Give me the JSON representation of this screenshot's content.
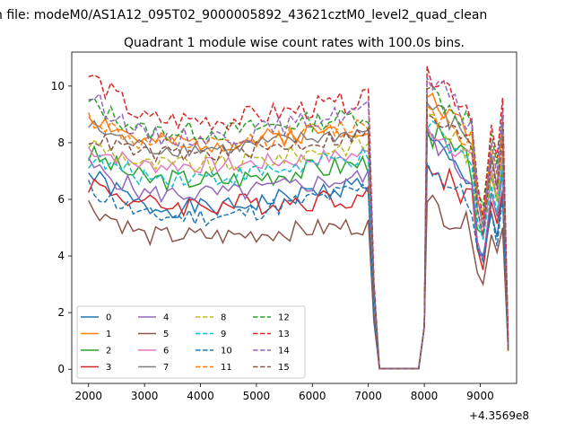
{
  "figure": {
    "suptitle": "n file: modeM0/AS1A12_095T02_9000005892_43621cztM0_level2_quad_clean",
    "title": "Quadrant 1 module wise count rates with 100.0s bins.",
    "x_offset_label": "+4.3569e8"
  },
  "chart_data": {
    "type": "line",
    "title": "Quadrant 1 module wise count rates with 100.0s bins.",
    "xlabel": "",
    "ylabel": "",
    "x_offset": "+4.3569e8",
    "xlim": [
      1700,
      9650
    ],
    "ylim": [
      -0.5,
      11.2
    ],
    "xticks": [
      2000,
      3000,
      4000,
      5000,
      6000,
      7000,
      8000,
      9000
    ],
    "yticks": [
      0,
      2,
      4,
      6,
      8,
      10
    ],
    "grid": false,
    "legend": {
      "placement": "lower-left",
      "columns": 4
    },
    "series": [
      {
        "name": "0",
        "color": "#1f77b4",
        "dash": "solid",
        "start": 6.9,
        "level": 5.7,
        "end": 6.6,
        "peak": 8.3,
        "amp": 0.35,
        "seed": 1
      },
      {
        "name": "1",
        "color": "#ff7f0e",
        "dash": "solid",
        "start": 9.0,
        "level": 8.0,
        "end": 8.6,
        "peak": 9.6,
        "amp": 0.35,
        "seed": 2
      },
      {
        "name": "2",
        "color": "#2ca02c",
        "dash": "solid",
        "start": 7.6,
        "level": 6.7,
        "end": 7.3,
        "peak": 8.5,
        "amp": 0.4,
        "seed": 3
      },
      {
        "name": "3",
        "color": "#d62728",
        "dash": "solid",
        "start": 6.6,
        "level": 5.8,
        "end": 6.1,
        "peak": 7.2,
        "amp": 0.4,
        "seed": 4
      },
      {
        "name": "4",
        "color": "#9467bd",
        "dash": "solid",
        "start": 7.2,
        "level": 6.2,
        "end": 6.8,
        "peak": 8.4,
        "amp": 0.35,
        "seed": 5
      },
      {
        "name": "5",
        "color": "#8c564b",
        "dash": "solid",
        "start": 5.8,
        "level": 4.7,
        "end": 5.1,
        "peak": 5.9,
        "amp": 0.35,
        "seed": 6
      },
      {
        "name": "6",
        "color": "#e377c2",
        "dash": "solid",
        "start": 7.8,
        "level": 7.2,
        "end": 7.6,
        "peak": 8.6,
        "amp": 0.3,
        "seed": 7
      },
      {
        "name": "7",
        "color": "#7f7f7f",
        "dash": "solid",
        "start": 8.6,
        "level": 7.8,
        "end": 8.4,
        "peak": 9.4,
        "amp": 0.3,
        "seed": 8
      },
      {
        "name": "8",
        "color": "#bcbd22",
        "dash": "dash",
        "start": 8.0,
        "level": 7.2,
        "end": 8.0,
        "peak": 9.0,
        "amp": 0.35,
        "seed": 9
      },
      {
        "name": "9",
        "color": "#17becf",
        "dash": "dash",
        "start": 7.4,
        "level": 6.8,
        "end": 7.5,
        "peak": 8.5,
        "amp": 0.35,
        "seed": 10
      },
      {
        "name": "10",
        "color": "#1f77b4",
        "dash": "dash",
        "start": 6.4,
        "level": 5.4,
        "end": 6.4,
        "peak": 7.3,
        "amp": 0.35,
        "seed": 11
      },
      {
        "name": "11",
        "color": "#ff7f0e",
        "dash": "dash",
        "start": 8.9,
        "level": 7.9,
        "end": 8.7,
        "peak": 9.3,
        "amp": 0.35,
        "seed": 12
      },
      {
        "name": "12",
        "color": "#2ca02c",
        "dash": "dash",
        "start": 9.4,
        "level": 8.4,
        "end": 9.0,
        "peak": 9.9,
        "amp": 0.35,
        "seed": 13
      },
      {
        "name": "13",
        "color": "#d62728",
        "dash": "dash",
        "start": 10.4,
        "level": 8.8,
        "end": 9.5,
        "peak": 10.7,
        "amp": 0.4,
        "seed": 14
      },
      {
        "name": "14",
        "color": "#9467bd",
        "dash": "dash",
        "start": 9.7,
        "level": 8.2,
        "end": 9.2,
        "peak": 10.3,
        "amp": 0.35,
        "seed": 15
      },
      {
        "name": "15",
        "color": "#8c564b",
        "dash": "dash",
        "start": 8.2,
        "level": 7.6,
        "end": 8.3,
        "peak": 9.0,
        "amp": 0.3,
        "seed": 16
      }
    ]
  }
}
